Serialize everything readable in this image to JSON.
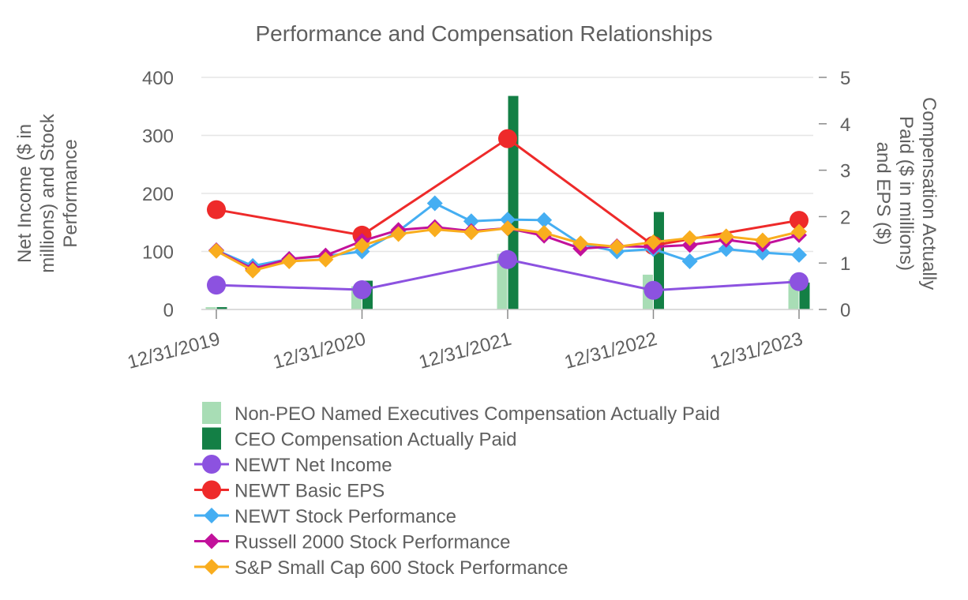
{
  "chart_data": {
    "type": "bar+line",
    "title": "Performance and Compensation Relationships",
    "categories": [
      "12/31/2019",
      "12/31/2020",
      "12/31/2021",
      "12/31/2022",
      "12/31/2023"
    ],
    "y_left": {
      "label_lines": [
        "Net Income ($ in",
        "millions) and Stock",
        "Performance"
      ],
      "ticks": [
        "0",
        "100",
        "200",
        "300",
        "400"
      ],
      "range": [
        0,
        400
      ]
    },
    "y_right": {
      "label_lines": [
        "Compensation Actually",
        "Paid ($ in millions)",
        "and EPS ($)"
      ],
      "ticks": [
        "0",
        "1",
        "2",
        "3",
        "4",
        "5"
      ],
      "range": [
        0,
        5
      ]
    },
    "colors": {
      "nonpeo": "#a8ddb5",
      "ceo": "#137f45",
      "net_income": "#8c52e0",
      "eps": "#ee2a2a",
      "newt_stock": "#45aef2",
      "russell": "#c2119b",
      "sp600": "#f9ad1e"
    },
    "bars": [
      {
        "key": "nonpeo",
        "name": "Non-PEO Named Executives Compensation Actually Paid",
        "axis": "right",
        "values": [
          0.05,
          0.5,
          1.2,
          0.75,
          0.65
        ]
      },
      {
        "key": "ceo",
        "name": "CEO Compensation Actually Paid",
        "axis": "right",
        "values": [
          0.05,
          0.62,
          4.6,
          2.1,
          0.58
        ]
      }
    ],
    "lines": [
      {
        "key": "net_income",
        "name": "NEWT Net Income",
        "axis": "left",
        "marker": "circle",
        "x": [
          0,
          1,
          2,
          3,
          4
        ],
        "values": [
          42,
          34,
          86,
          33,
          48
        ]
      },
      {
        "key": "eps",
        "name": "NEWT Basic EPS",
        "axis": "right",
        "marker": "circle",
        "x": [
          0,
          1,
          2,
          3,
          4
        ],
        "values": [
          2.15,
          1.6,
          3.68,
          1.38,
          1.92
        ]
      },
      {
        "key": "newt_stock",
        "name": "NEWT Stock Performance",
        "axis": "left",
        "marker": "diamond",
        "x": [
          0,
          0.25,
          0.5,
          0.75,
          1,
          1.25,
          1.5,
          1.75,
          2,
          2.25,
          2.5,
          2.75,
          3,
          3.25,
          3.5,
          3.75,
          4
        ],
        "values": [
          102,
          75,
          87,
          92,
          100,
          135,
          183,
          152,
          155,
          154,
          113,
          100,
          104,
          83,
          104,
          98,
          94
        ]
      },
      {
        "key": "russell",
        "name": "Russell 2000 Stock Performance",
        "axis": "left",
        "marker": "diamond",
        "x": [
          0,
          0.25,
          0.5,
          0.75,
          1,
          1.25,
          1.5,
          1.75,
          2,
          2.25,
          2.5,
          2.75,
          3,
          3.25,
          3.5,
          3.75,
          4
        ],
        "values": [
          102,
          70,
          87,
          93,
          118,
          137,
          142,
          135,
          140,
          127,
          105,
          109,
          108,
          111,
          120,
          112,
          128
        ]
      },
      {
        "key": "sp600",
        "name": "S&P Small Cap 600 Stock Performance",
        "axis": "left",
        "marker": "diamond",
        "x": [
          0,
          0.25,
          0.5,
          0.75,
          1,
          1.25,
          1.5,
          1.75,
          2,
          2.25,
          2.5,
          2.75,
          3,
          3.25,
          3.5,
          3.75,
          4
        ],
        "values": [
          101,
          67,
          83,
          86,
          110,
          130,
          138,
          133,
          140,
          132,
          114,
          108,
          116,
          123,
          126,
          119,
          134
        ]
      }
    ],
    "legend": [
      {
        "key": "nonpeo",
        "label": "Non-PEO Named Executives Compensation Actually Paid",
        "kind": "bar"
      },
      {
        "key": "ceo",
        "label": "CEO Compensation Actually Paid",
        "kind": "bar"
      },
      {
        "key": "net_income",
        "label": "NEWT Net Income",
        "kind": "circle"
      },
      {
        "key": "eps",
        "label": "NEWT Basic EPS",
        "kind": "circle"
      },
      {
        "key": "newt_stock",
        "label": "NEWT Stock Performance",
        "kind": "diamond"
      },
      {
        "key": "russell",
        "label": "Russell 2000 Stock Performance",
        "kind": "diamond"
      },
      {
        "key": "sp600",
        "label": "S&P Small Cap 600 Stock Performance",
        "kind": "diamond"
      }
    ],
    "legend_position": "bottom",
    "grid": true
  }
}
